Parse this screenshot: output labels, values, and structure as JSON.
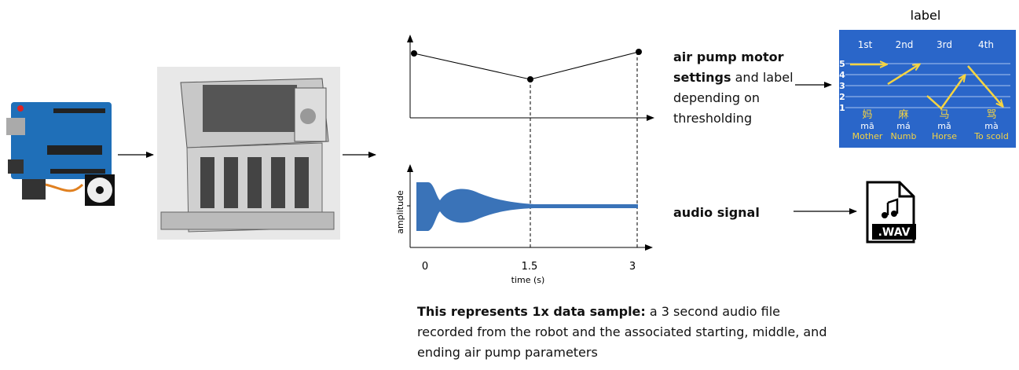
{
  "diagram": {
    "plot": {
      "x_tick_labels": [
        "0",
        "1.5",
        "3"
      ],
      "x_label": "time (s)",
      "y_label": "amplitude"
    },
    "description": {
      "bold": "air pump motor settings",
      "text": "and label depending on thresholding"
    },
    "audio": {
      "label": "audio signal",
      "file": ".WAV"
    },
    "label_panel": {
      "title": "label",
      "columns": [
        "1st",
        "2nd",
        "3rd",
        "4th"
      ],
      "levels": [
        "5",
        "4",
        "3",
        "2",
        "1"
      ],
      "words": [
        {
          "char": "妈",
          "pinyin": "mā",
          "meaning": "Mother"
        },
        {
          "char": "麻",
          "pinyin": "má",
          "meaning": "Numb"
        },
        {
          "char": "马",
          "pinyin": "mǎ",
          "meaning": "Horse"
        },
        {
          "char": "骂",
          "pinyin": "mà",
          "meaning": "To scold"
        }
      ]
    },
    "caption": {
      "bold": "This represents 1x data sample:",
      "text": "a 3 second audio file recorded from the robot and the associated starting, middle, and ending air pump parameters"
    }
  }
}
